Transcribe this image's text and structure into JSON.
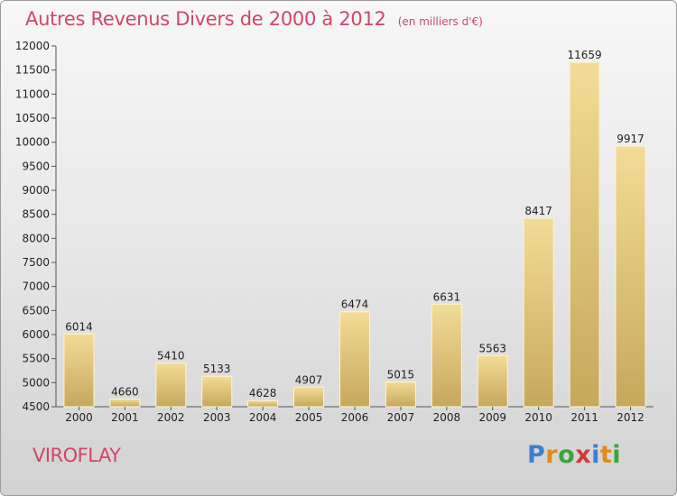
{
  "title": "Autres Revenus Divers de 2000 à 2012",
  "subtitle": "(en milliers d'€)",
  "commune": "VIROFLAY",
  "logo": {
    "letters": [
      "P",
      "r",
      "o",
      "x",
      "i",
      "t",
      "i"
    ],
    "colors": [
      "#3b7fd0",
      "#e28a1d",
      "#3aa53a",
      "#d23a3a",
      "#3b7fd0",
      "#e28a1d",
      "#3aa53a"
    ]
  },
  "chart_data": {
    "type": "bar",
    "categories": [
      "2000",
      "2001",
      "2002",
      "2003",
      "2004",
      "2005",
      "2006",
      "2007",
      "2008",
      "2009",
      "2010",
      "2011",
      "2012"
    ],
    "values": [
      6014,
      4660,
      5410,
      5133,
      4628,
      4907,
      6474,
      5015,
      6631,
      5563,
      8417,
      11659,
      9917
    ],
    "ylim": [
      4500,
      12000
    ],
    "yticks": [
      4500,
      5000,
      5500,
      6000,
      6500,
      7000,
      7500,
      8000,
      8500,
      9000,
      9500,
      10000,
      10500,
      11000,
      11500,
      12000
    ],
    "grid": false,
    "colors": {
      "bar_light": "#f3dc96",
      "bar_dark": "#c6a85c"
    }
  }
}
